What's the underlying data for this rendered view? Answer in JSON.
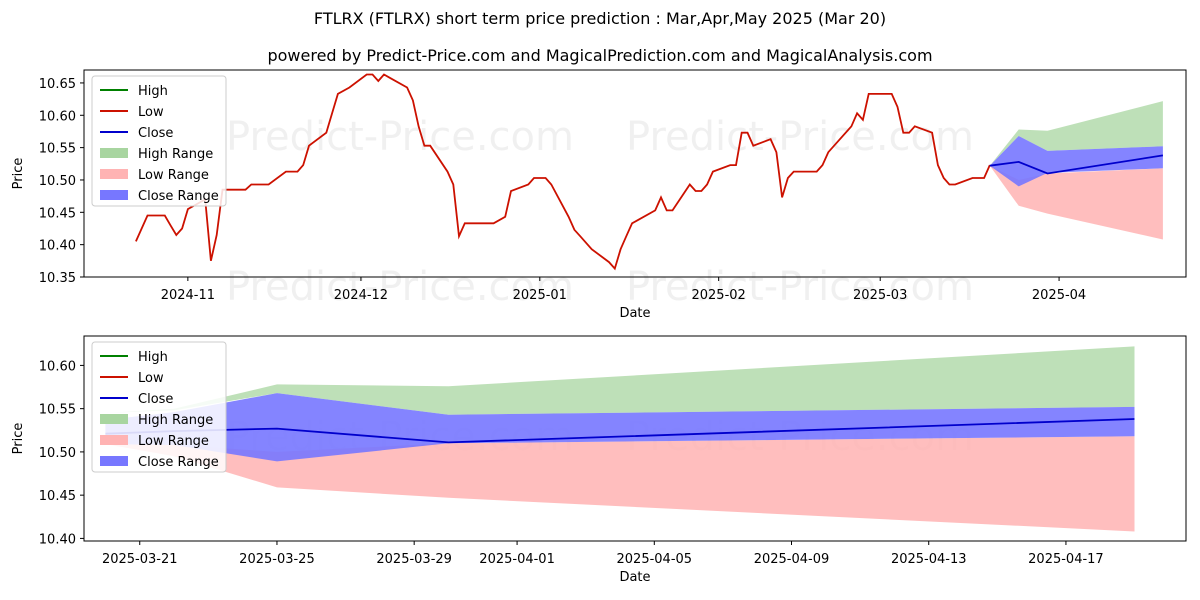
{
  "title": "FTLRX (FTLRX) short term price prediction : Mar,Apr,May 2025 (Mar 20)",
  "subtitle": "powered by Predict-Price.com and MagicalPrediction.com and MagicalAnalysis.com",
  "watermark": "Predict-Price.com",
  "colors": {
    "high": "#008000",
    "low": "#cc1100",
    "close": "#0000cc",
    "high_range": "#a8d5a0",
    "low_range": "#ffb3b3",
    "close_range": "#7777ff"
  },
  "legend_entries": [
    "High",
    "Low",
    "Close",
    "High Range",
    "Low Range",
    "Close Range"
  ],
  "chart_data": [
    {
      "type": "line",
      "xlabel": "Date",
      "ylabel": "Price",
      "ylim": [
        10.35,
        10.67
      ],
      "xlim": [
        "2024-10-14",
        "2025-04-23"
      ],
      "yticks": [
        10.35,
        10.4,
        10.45,
        10.5,
        10.55,
        10.6,
        10.65
      ],
      "ytick_labels": [
        "10.35",
        "10.40",
        "10.45",
        "10.50",
        "10.55",
        "10.60",
        "10.65"
      ],
      "xticks": [
        "2024-11-01",
        "2024-12-01",
        "2025-01-01",
        "2025-02-01",
        "2025-03-01",
        "2025-04-01"
      ],
      "xtick_labels": [
        "2024-11",
        "2024-12",
        "2025-01",
        "2025-02",
        "2025-03",
        "2025-04"
      ],
      "legend": "top-left",
      "grid": false,
      "history": {
        "x": [
          "2024-10-23",
          "2024-10-25",
          "2024-10-28",
          "2024-10-29",
          "2024-10-30",
          "2024-10-31",
          "2024-11-01",
          "2024-11-04",
          "2024-11-05",
          "2024-11-06",
          "2024-11-07",
          "2024-11-08",
          "2024-11-11",
          "2024-11-12",
          "2024-11-13",
          "2024-11-14",
          "2024-11-15",
          "2024-11-18",
          "2024-11-19",
          "2024-11-20",
          "2024-11-21",
          "2024-11-22",
          "2024-11-25",
          "2024-11-26",
          "2024-11-27",
          "2024-11-29",
          "2024-12-02",
          "2024-12-03",
          "2024-12-04",
          "2024-12-05",
          "2024-12-06",
          "2024-12-09",
          "2024-12-10",
          "2024-12-11",
          "2024-12-12",
          "2024-12-13",
          "2024-12-16",
          "2024-12-17",
          "2024-12-18",
          "2024-12-19",
          "2024-12-20",
          "2024-12-23",
          "2024-12-24",
          "2024-12-26",
          "2024-12-27",
          "2024-12-30",
          "2024-12-31",
          "2025-01-02",
          "2025-01-03",
          "2025-01-06",
          "2025-01-07",
          "2025-01-08",
          "2025-01-10",
          "2025-01-13",
          "2025-01-14",
          "2025-01-15",
          "2025-01-16",
          "2025-01-17",
          "2025-01-21",
          "2025-01-22",
          "2025-01-23",
          "2025-01-24",
          "2025-01-27",
          "2025-01-28",
          "2025-01-29",
          "2025-01-30",
          "2025-01-31",
          "2025-02-03",
          "2025-02-04",
          "2025-02-05",
          "2025-02-06",
          "2025-02-07",
          "2025-02-10",
          "2025-02-11",
          "2025-02-12",
          "2025-02-13",
          "2025-02-14",
          "2025-02-18",
          "2025-02-19",
          "2025-02-20",
          "2025-02-21",
          "2025-02-24",
          "2025-02-25",
          "2025-02-26",
          "2025-02-27",
          "2025-02-28",
          "2025-03-03",
          "2025-03-04",
          "2025-03-05",
          "2025-03-06",
          "2025-03-07",
          "2025-03-10",
          "2025-03-11",
          "2025-03-12",
          "2025-03-13",
          "2025-03-14",
          "2025-03-17",
          "2025-03-18",
          "2025-03-19",
          "2025-03-20"
        ],
        "low": [
          10.405,
          10.445,
          10.445,
          10.43,
          10.415,
          10.425,
          10.455,
          10.47,
          10.375,
          10.415,
          10.485,
          10.485,
          10.485,
          10.493,
          10.493,
          10.493,
          10.493,
          10.513,
          10.513,
          10.513,
          10.523,
          10.553,
          10.573,
          10.603,
          10.633,
          10.643,
          10.663,
          10.663,
          10.653,
          10.663,
          10.658,
          10.643,
          10.623,
          10.583,
          10.553,
          10.553,
          10.513,
          10.493,
          10.413,
          10.433,
          10.433,
          10.433,
          10.433,
          10.443,
          10.483,
          10.493,
          10.503,
          10.503,
          10.493,
          10.443,
          10.423,
          10.413,
          10.393,
          10.373,
          10.363,
          10.393,
          10.413,
          10.433,
          10.453,
          10.473,
          10.453,
          10.453,
          10.493,
          10.483,
          10.483,
          10.493,
          10.513,
          10.523,
          10.523,
          10.573,
          10.573,
          10.553,
          10.563,
          10.543,
          10.473,
          10.503,
          10.513,
          10.513,
          10.523,
          10.543,
          10.553,
          10.583,
          10.603,
          10.593,
          10.633,
          10.633,
          10.633,
          10.613,
          10.573,
          10.573,
          10.583,
          10.573,
          10.523,
          10.503,
          10.493,
          10.493,
          10.503,
          10.503,
          10.503,
          10.523
        ]
      },
      "forecast": {
        "x": [
          "2025-03-20",
          "2025-03-25",
          "2025-03-30",
          "2025-04-19"
        ],
        "close": [
          10.522,
          10.528,
          10.51,
          10.538
        ],
        "high_range_upper": [
          10.522,
          10.578,
          10.576,
          10.622
        ],
        "high_range_lower": [
          10.522,
          10.568,
          10.545,
          10.552
        ],
        "close_range_upper": [
          10.522,
          10.568,
          10.545,
          10.552
        ],
        "close_range_lower": [
          10.522,
          10.49,
          10.511,
          10.518
        ],
        "low_range_upper": [
          10.522,
          10.5,
          10.51,
          10.518
        ],
        "low_range_lower": [
          10.522,
          10.46,
          10.448,
          10.408
        ]
      }
    },
    {
      "type": "line",
      "xlabel": "Date",
      "ylabel": "Price",
      "ylim": [
        10.397,
        10.634
      ],
      "xlim": [
        "2025-03-19 09:00",
        "2025-04-20 12:00"
      ],
      "yticks": [
        10.4,
        10.45,
        10.5,
        10.55,
        10.6
      ],
      "ytick_labels": [
        "10.40",
        "10.45",
        "10.50",
        "10.55",
        "10.60"
      ],
      "xticks": [
        "2025-03-21",
        "2025-03-25",
        "2025-03-29",
        "2025-04-01",
        "2025-04-05",
        "2025-04-09",
        "2025-04-13",
        "2025-04-17"
      ],
      "xtick_labels": [
        "2025-03-21",
        "2025-03-25",
        "2025-03-29",
        "2025-04-01",
        "2025-04-05",
        "2025-04-09",
        "2025-04-13",
        "2025-04-17"
      ],
      "legend": "top-left",
      "grid": false,
      "forecast": {
        "x": [
          "2025-03-20",
          "2025-03-22",
          "2025-03-25",
          "2025-03-30",
          "2025-04-19"
        ],
        "close": [
          10.521,
          10.524,
          10.527,
          10.511,
          10.538
        ],
        "high_range_upper": [
          10.545,
          10.55,
          10.578,
          10.576,
          10.622
        ],
        "high_range_lower": [
          10.545,
          10.548,
          10.568,
          10.543,
          10.552
        ],
        "close_range_upper": [
          10.537,
          10.546,
          10.568,
          10.543,
          10.552
        ],
        "close_range_lower": [
          10.509,
          10.508,
          10.489,
          10.51,
          10.518
        ],
        "low_range_upper": [
          10.509,
          10.508,
          10.5,
          10.51,
          10.518
        ],
        "low_range_lower": [
          10.509,
          10.495,
          10.459,
          10.447,
          10.408
        ]
      }
    }
  ]
}
